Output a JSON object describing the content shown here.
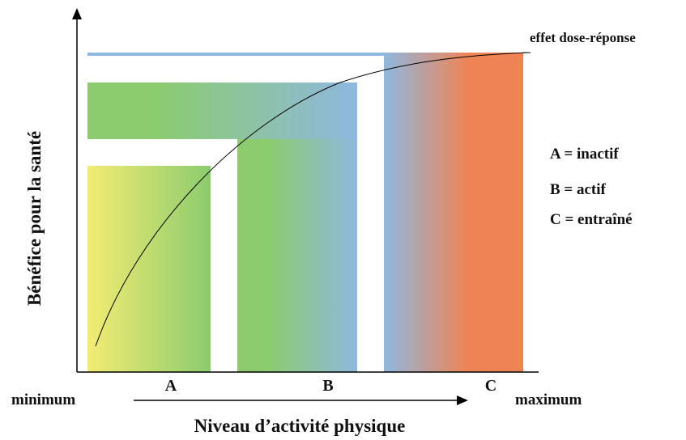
{
  "axes": {
    "y_label": "Bénéfice pour la santé",
    "x_label": "Niveau d’activité physique",
    "x_min_label": "minimum",
    "x_max_label": "maximum"
  },
  "curve_label": "effet dose-réponse",
  "zones": [
    {
      "letter": "A",
      "colors": [
        "#f3ec73",
        "#8ccc6e"
      ]
    },
    {
      "letter": "B",
      "colors": [
        "#8ccc6e",
        "#8fb8df"
      ]
    },
    {
      "letter": "C",
      "colors": [
        "#8fb8df",
        "#ee8455"
      ]
    }
  ],
  "legend": [
    {
      "text": "A = inactif"
    },
    {
      "text": "B = actif"
    },
    {
      "text": "C = entraîné"
    }
  ],
  "colors": {
    "yellow": "#f3ec73",
    "green": "#8ccc6e",
    "blue": "#8fb8df",
    "orange": "#ee8455",
    "axis": "#000000"
  }
}
